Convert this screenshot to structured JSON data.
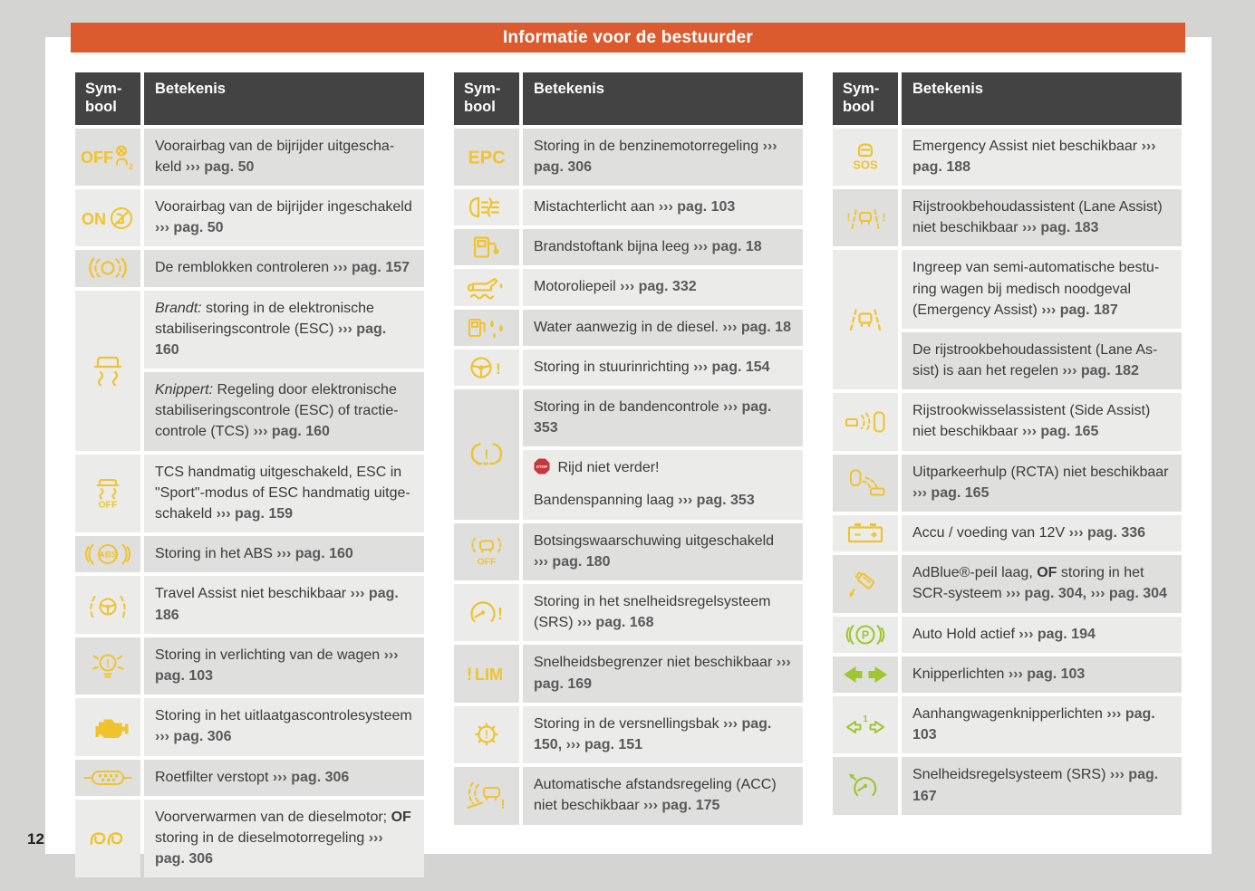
{
  "title": "Informatie voor de bestuurder",
  "page_number": "12",
  "colors": {
    "accent": "#db5b2e",
    "table_header_bg": "#434343",
    "row_light": "#ebebe9",
    "row_dark": "#dfdfdd",
    "icon_yellow": "#f0c32e",
    "icon_green": "#a0c62f",
    "stop_red": "#c8353c",
    "body_text": "#3a3a3c",
    "ref_text": "#59595b",
    "page_bg": "#d4d4d2"
  },
  "table_header": {
    "symbol": "Sym-bool",
    "meaning": "Betekenis"
  },
  "tables": [
    {
      "rows": [
        {
          "icon": "airbag-off-icon",
          "icon_label": "OFF",
          "icon_color": "yellow",
          "cells": [
            {
              "segments": [
                [
                  "n",
                  "Voorairbag van de bijrijder uitgescha­keld "
                ],
                [
                  "r",
                  "››› pag. 50"
                ]
              ]
            }
          ]
        },
        {
          "icon": "airbag-on-icon",
          "icon_label": "ON",
          "icon_color": "yellow",
          "cells": [
            {
              "segments": [
                [
                  "n",
                  "Voorairbag van de bijrijder ingescha­keld "
                ],
                [
                  "r",
                  "››› pag. 50"
                ]
              ]
            }
          ]
        },
        {
          "icon": "brake-pads-icon",
          "icon_label": "",
          "icon_color": "yellow",
          "cells": [
            {
              "segments": [
                [
                  "n",
                  "De remblokken controleren "
                ],
                [
                  "r",
                  "››› pag. 157"
                ]
              ]
            }
          ]
        },
        {
          "icon": "esc-icon",
          "icon_label": "",
          "icon_color": "yellow",
          "cells": [
            {
              "segments": [
                [
                  "i",
                  "Brandt:"
                ],
                [
                  "n",
                  " storing in de elektronische stabi­liseringscontrole (ESC) "
                ],
                [
                  "r",
                  "››› pag. 160"
                ]
              ]
            },
            {
              "segments": [
                [
                  "i",
                  "Knippert:"
                ],
                [
                  "n",
                  " Regeling door elektronische stabiliseringscontrole (ESC) of tractie­controle (TCS) "
                ],
                [
                  "r",
                  "››› pag. 160"
                ]
              ]
            }
          ]
        },
        {
          "icon": "esc-off-icon",
          "icon_label": "OFF",
          "icon_color": "yellow",
          "cells": [
            {
              "segments": [
                [
                  "n",
                  "TCS handmatig uitgeschakeld, ESC in \"Sport\"-modus of ESC handmatig uitge­schakeld "
                ],
                [
                  "r",
                  "››› pag. 159"
                ]
              ]
            }
          ]
        },
        {
          "icon": "abs-icon",
          "icon_label": "ABS",
          "icon_color": "yellow",
          "cells": [
            {
              "segments": [
                [
                  "n",
                  "Storing in het ABS "
                ],
                [
                  "r",
                  "››› pag. 160"
                ]
              ]
            }
          ]
        },
        {
          "icon": "travel-assist-icon",
          "icon_label": "",
          "icon_color": "yellow",
          "cells": [
            {
              "segments": [
                [
                  "n",
                  "Travel Assist niet beschikbaar "
                ],
                [
                  "r",
                  "››› pag. 186"
                ]
              ]
            }
          ]
        },
        {
          "icon": "light-fault-icon",
          "icon_label": "",
          "icon_color": "yellow",
          "cells": [
            {
              "segments": [
                [
                  "n",
                  "Storing in verlichting van de wagen "
                ],
                [
                  "r",
                  "››› pag. 103"
                ]
              ]
            }
          ]
        },
        {
          "icon": "engine-icon",
          "icon_label": "",
          "icon_color": "yellow",
          "cells": [
            {
              "segments": [
                [
                  "n",
                  "Storing in het uitlaatgascontrolesys­teem "
                ],
                [
                  "r",
                  "››› pag. 306"
                ]
              ]
            }
          ]
        },
        {
          "icon": "particulate-filter-icon",
          "icon_label": "",
          "icon_color": "yellow",
          "cells": [
            {
              "segments": [
                [
                  "n",
                  "Roetfilter verstopt "
                ],
                [
                  "r",
                  "››› pag. 306"
                ]
              ]
            }
          ]
        },
        {
          "icon": "glow-plug-icon",
          "icon_label": "",
          "icon_color": "yellow",
          "cells": [
            {
              "segments": [
                [
                  "n",
                  "Voorverwarmen van de dieselmotor; "
                ],
                [
                  "b",
                  "OF"
                ],
                [
                  "n",
                  " storing in de dieselmotorregeling "
                ],
                [
                  "r",
                  "››› pag. 306"
                ]
              ]
            }
          ]
        }
      ]
    },
    {
      "rows": [
        {
          "icon": "epc-icon",
          "icon_label": "EPC",
          "icon_color": "yellow",
          "cells": [
            {
              "segments": [
                [
                  "n",
                  "Storing in de benzinemotorregeling "
                ],
                [
                  "r",
                  "››› pag. 306"
                ]
              ]
            }
          ]
        },
        {
          "icon": "rear-fog-icon",
          "icon_label": "",
          "icon_color": "yellow",
          "cells": [
            {
              "segments": [
                [
                  "n",
                  "Mistachterlicht aan "
                ],
                [
                  "r",
                  "››› pag. 103"
                ]
              ]
            }
          ]
        },
        {
          "icon": "fuel-icon",
          "icon_label": "",
          "icon_color": "yellow",
          "cells": [
            {
              "segments": [
                [
                  "n",
                  "Brandstoftank bijna leeg "
                ],
                [
                  "r",
                  "››› pag. 18"
                ]
              ]
            }
          ]
        },
        {
          "icon": "oil-icon",
          "icon_label": "",
          "icon_color": "yellow",
          "cells": [
            {
              "segments": [
                [
                  "n",
                  "Motoroliepeil "
                ],
                [
                  "r",
                  "››› pag. 332"
                ]
              ]
            }
          ]
        },
        {
          "icon": "water-in-fuel-icon",
          "icon_label": "",
          "icon_color": "yellow",
          "cells": [
            {
              "segments": [
                [
                  "n",
                  "Water aanwezig in de diesel. "
                ],
                [
                  "r",
                  "››› pag. 18"
                ]
              ]
            }
          ]
        },
        {
          "icon": "steering-icon",
          "icon_label": "",
          "icon_color": "yellow",
          "cells": [
            {
              "segments": [
                [
                  "n",
                  "Storing in stuurinrichting "
                ],
                [
                  "r",
                  "››› pag. 154"
                ]
              ]
            }
          ]
        },
        {
          "icon": "tpms-icon",
          "icon_label": "",
          "icon_color": "yellow",
          "cells": [
            {
              "segments": [
                [
                  "n",
                  "Storing in de bandencontrole "
                ],
                [
                  "r",
                  "››› pag. 353"
                ]
              ]
            },
            {
              "segments": [
                [
                  "stop",
                  "STOP"
                ],
                [
                  "n",
                  " Rijd niet verder!"
                ],
                [
                  "nl",
                  ""
                ],
                [
                  "n",
                  "Bandenspanning laag "
                ],
                [
                  "r",
                  "››› pag. 353"
                ]
              ]
            }
          ]
        },
        {
          "icon": "collision-off-icon",
          "icon_label": "OFF",
          "icon_color": "yellow",
          "cells": [
            {
              "segments": [
                [
                  "n",
                  "Botsingswaarschuwing uitgeschakeld "
                ],
                [
                  "r",
                  "››› pag. 180"
                ]
              ]
            }
          ]
        },
        {
          "icon": "cruise-fault-icon",
          "icon_label": "",
          "icon_color": "yellow",
          "cells": [
            {
              "segments": [
                [
                  "n",
                  "Storing in het snelheidsregelsysteem (SRS) "
                ],
                [
                  "r",
                  "››› pag. 168"
                ]
              ]
            }
          ]
        },
        {
          "icon": "lim-icon",
          "icon_label": "LIM",
          "icon_color": "yellow",
          "cells": [
            {
              "segments": [
                [
                  "n",
                  "Snelheidsbegrenzer niet beschikbaar "
                ],
                [
                  "r",
                  "››› pag. 169"
                ]
              ]
            }
          ]
        },
        {
          "icon": "gearbox-icon",
          "icon_label": "",
          "icon_color": "yellow",
          "cells": [
            {
              "segments": [
                [
                  "n",
                  "Storing in de versnellingsbak "
                ],
                [
                  "r",
                  "››› pag. 150,"
                ],
                [
                  "n",
                  " "
                ],
                [
                  "r",
                  "››› pag. 151"
                ]
              ]
            }
          ]
        },
        {
          "icon": "acc-icon",
          "icon_label": "",
          "icon_color": "yellow",
          "cells": [
            {
              "segments": [
                [
                  "n",
                  "Automatische afstandsregeling (ACC) niet beschikbaar "
                ],
                [
                  "r",
                  "››› pag. 175"
                ]
              ]
            }
          ]
        }
      ]
    },
    {
      "rows": [
        {
          "icon": "sos-icon",
          "icon_label": "SOS",
          "icon_color": "yellow",
          "cells": [
            {
              "segments": [
                [
                  "n",
                  "Emergency Assist niet beschikbaar "
                ],
                [
                  "r",
                  "››› pag. 188"
                ]
              ]
            }
          ]
        },
        {
          "icon": "lane-warn-icon",
          "icon_label": "",
          "icon_color": "yellow",
          "cells": [
            {
              "segments": [
                [
                  "n",
                  "Rijstrookbehoudassistent (Lane Assist) niet beschikbaar "
                ],
                [
                  "r",
                  "››› pag. 183"
                ]
              ]
            }
          ]
        },
        {
          "icon": "lane-icon",
          "icon_label": "",
          "icon_color": "yellow",
          "cells": [
            {
              "segments": [
                [
                  "n",
                  "Ingreep van semi-automatische bestu­ring wagen bij medisch noodgeval (Emergency Assist) "
                ],
                [
                  "r",
                  "››› pag. 187"
                ]
              ]
            },
            {
              "segments": [
                [
                  "n",
                  "De rijstrookbehoudassistent (Lane As­sist) is aan het regelen "
                ],
                [
                  "r",
                  "››› pag. 182"
                ]
              ]
            }
          ]
        },
        {
          "icon": "side-assist-icon",
          "icon_label": "",
          "icon_color": "yellow",
          "cells": [
            {
              "segments": [
                [
                  "n",
                  "Rijstrookwisselassistent (Side Assist) niet beschikbaar "
                ],
                [
                  "r",
                  "››› pag. 165"
                ]
              ]
            }
          ]
        },
        {
          "icon": "rcta-icon",
          "icon_label": "",
          "icon_color": "yellow",
          "cells": [
            {
              "segments": [
                [
                  "n",
                  "Uitparkeerhulp (RCTA) niet beschikbaar "
                ],
                [
                  "r",
                  "››› pag. 165"
                ]
              ]
            }
          ]
        },
        {
          "icon": "battery-icon",
          "icon_label": "",
          "icon_color": "yellow",
          "cells": [
            {
              "segments": [
                [
                  "n",
                  "Accu / voeding van 12V "
                ],
                [
                  "r",
                  "››› pag. 336"
                ]
              ]
            }
          ]
        },
        {
          "icon": "adblue-icon",
          "icon_label": "",
          "icon_color": "yellow",
          "cells": [
            {
              "segments": [
                [
                  "n",
                  "AdBlue®-peil laag, "
                ],
                [
                  "b",
                  "OF"
                ],
                [
                  "n",
                  " storing in het SCR-systeem "
                ],
                [
                  "r",
                  "››› pag. 304,"
                ],
                [
                  "n",
                  " "
                ],
                [
                  "r",
                  "››› pag. 304"
                ]
              ]
            }
          ]
        },
        {
          "icon": "auto-hold-icon",
          "icon_label": "P",
          "icon_color": "green",
          "cells": [
            {
              "segments": [
                [
                  "n",
                  "Auto Hold actief "
                ],
                [
                  "r",
                  "››› pag. 194"
                ]
              ]
            }
          ]
        },
        {
          "icon": "turn-signals-icon",
          "icon_label": "",
          "icon_color": "green",
          "cells": [
            {
              "segments": [
                [
                  "n",
                  "Knipperlichten "
                ],
                [
                  "r",
                  "››› pag. 103"
                ]
              ]
            }
          ]
        },
        {
          "icon": "trailer-signals-icon",
          "icon_label": "1",
          "icon_color": "green",
          "cells": [
            {
              "segments": [
                [
                  "n",
                  "Aanhangwagenknipperlichten "
                ],
                [
                  "r",
                  "››› pag. 103"
                ]
              ]
            }
          ]
        },
        {
          "icon": "cruise-set-icon",
          "icon_label": "",
          "icon_color": "green",
          "cells": [
            {
              "segments": [
                [
                  "n",
                  "Snelheidsregelsysteem (SRS) "
                ],
                [
                  "r",
                  "››› pag. 167"
                ]
              ]
            }
          ]
        }
      ]
    }
  ]
}
